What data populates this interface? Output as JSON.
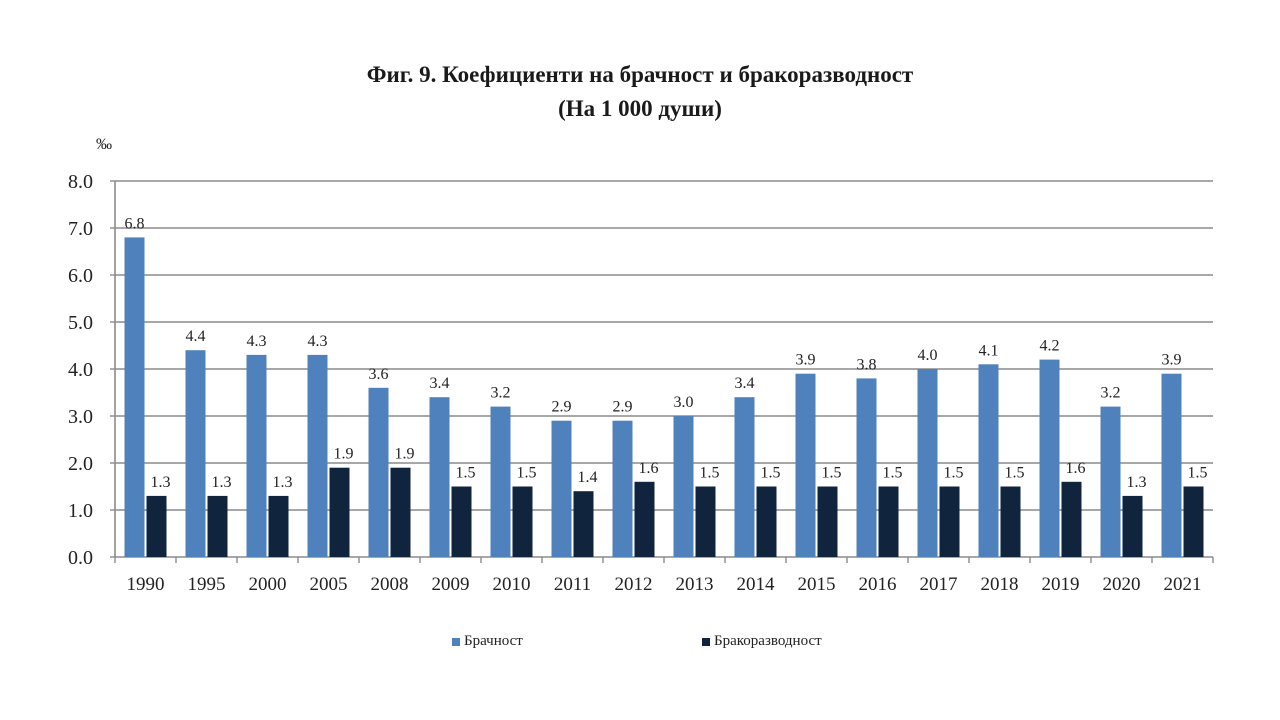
{
  "title": {
    "line1": "Фиг. 9. Коефициенти на брачност и бракоразводност",
    "line2": "(На 1 000 души)"
  },
  "unit_label": "‰",
  "legend": [
    {
      "label": "Брачност",
      "color": "#4f81bd"
    },
    {
      "label": "Бракоразводност",
      "color": "#10243e"
    }
  ],
  "chart_data": {
    "type": "bar",
    "title": "Фиг. 9. Коефициенти на брачност и бракоразводност (На 1 000 души)",
    "xlabel": "",
    "ylabel": "‰",
    "ylim": [
      0,
      8
    ],
    "yticks": [
      "0.0",
      "1.0",
      "2.0",
      "3.0",
      "4.0",
      "5.0",
      "6.0",
      "7.0",
      "8.0"
    ],
    "grid": true,
    "legend_position": "bottom",
    "categories": [
      "1990",
      "1995",
      "2000",
      "2005",
      "2008",
      "2009",
      "2010",
      "2011",
      "2012",
      "2013",
      "2014",
      "2015",
      "2016",
      "2017",
      "2018",
      "2019",
      "2020",
      "2021"
    ],
    "series": [
      {
        "name": "Брачност",
        "color": "#4f81bd",
        "values": [
          6.8,
          4.4,
          4.3,
          4.3,
          3.6,
          3.4,
          3.2,
          2.9,
          2.9,
          3.0,
          3.4,
          3.9,
          3.8,
          4.0,
          4.1,
          4.2,
          3.2,
          3.9
        ]
      },
      {
        "name": "Бракоразводност",
        "color": "#10243e",
        "values": [
          1.3,
          1.3,
          1.3,
          1.9,
          1.9,
          1.5,
          1.5,
          1.4,
          1.6,
          1.5,
          1.5,
          1.5,
          1.5,
          1.5,
          1.5,
          1.6,
          1.3,
          1.5
        ]
      }
    ]
  }
}
